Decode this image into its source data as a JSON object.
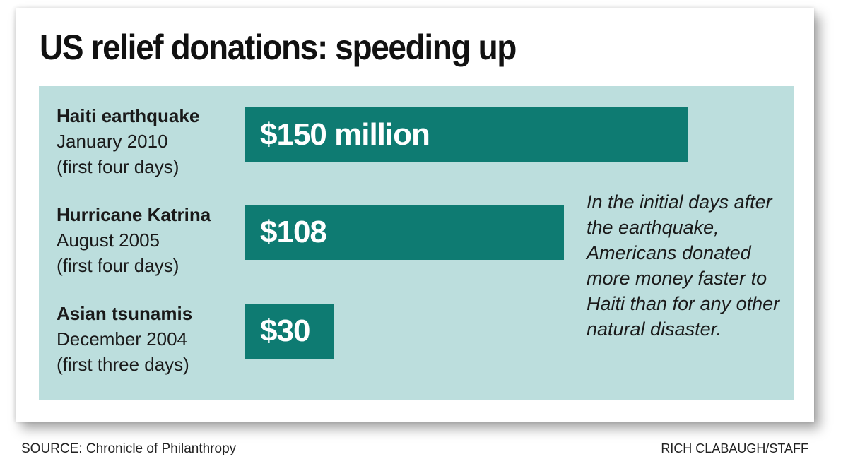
{
  "title": "US relief donations: speeding up",
  "annotation": "In the initial days after the earthquake, Americans donated more money faster to Haiti than for any other natural disaster.",
  "source": "SOURCE: Chronicle of Philanthropy",
  "credit": "RICH CLABAUGH/STAFF",
  "colors": {
    "panel": "#bcdedd",
    "bar": "#0e7b72",
    "bar_text": "#ffffff"
  },
  "chart_data": {
    "type": "bar",
    "orientation": "horizontal",
    "title": "US relief donations: speeding up",
    "unit": "million US dollars",
    "categories": [
      {
        "name": "Haiti earthquake",
        "date": "January 2010",
        "note": "(first four days)"
      },
      {
        "name": "Hurricane Katrina",
        "date": "August 2005",
        "note": "(first four days)"
      },
      {
        "name": "Asian tsunamis",
        "date": "December 2004",
        "note": "(first three days)"
      }
    ],
    "values": [
      150,
      108,
      30
    ],
    "value_labels": [
      "$150 million",
      "$108",
      "$30"
    ]
  }
}
